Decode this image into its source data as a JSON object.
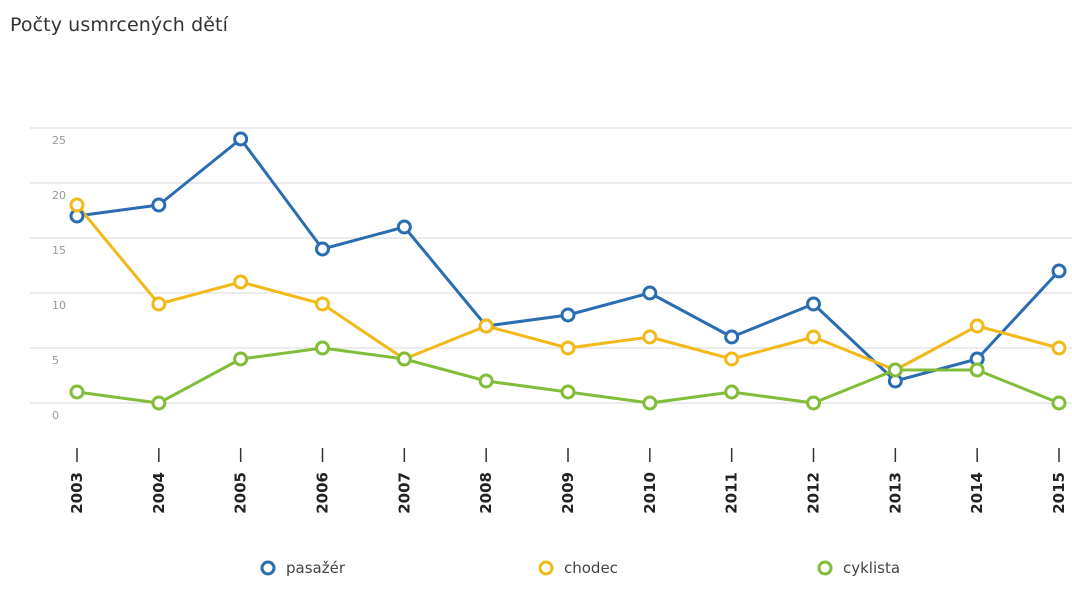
{
  "chart_data": {
    "type": "line",
    "title": "Počty usmrcených dětí",
    "xlabel": "",
    "ylabel": "",
    "categories": [
      "2003",
      "2004",
      "2005",
      "2006",
      "2007",
      "2008",
      "2009",
      "2010",
      "2011",
      "2012",
      "2013",
      "2014",
      "2015"
    ],
    "ylim": [
      0,
      25
    ],
    "yticks": [
      0,
      5,
      10,
      15,
      20,
      25
    ],
    "grid": true,
    "legend_position": "bottom",
    "series": [
      {
        "name": "pasažér",
        "color": "#2a6db0",
        "values": [
          17,
          18,
          24,
          14,
          16,
          7,
          8,
          10,
          6,
          9,
          2,
          4,
          12
        ]
      },
      {
        "name": "chodec",
        "color": "#f2b91a",
        "values": [
          18,
          9,
          11,
          9,
          4,
          7,
          5,
          6,
          4,
          6,
          3,
          7,
          5
        ]
      },
      {
        "name": "cyklista",
        "color": "#82bd3a",
        "values": [
          1,
          0,
          4,
          5,
          4,
          2,
          1,
          0,
          1,
          0,
          3,
          3,
          0
        ]
      }
    ]
  }
}
